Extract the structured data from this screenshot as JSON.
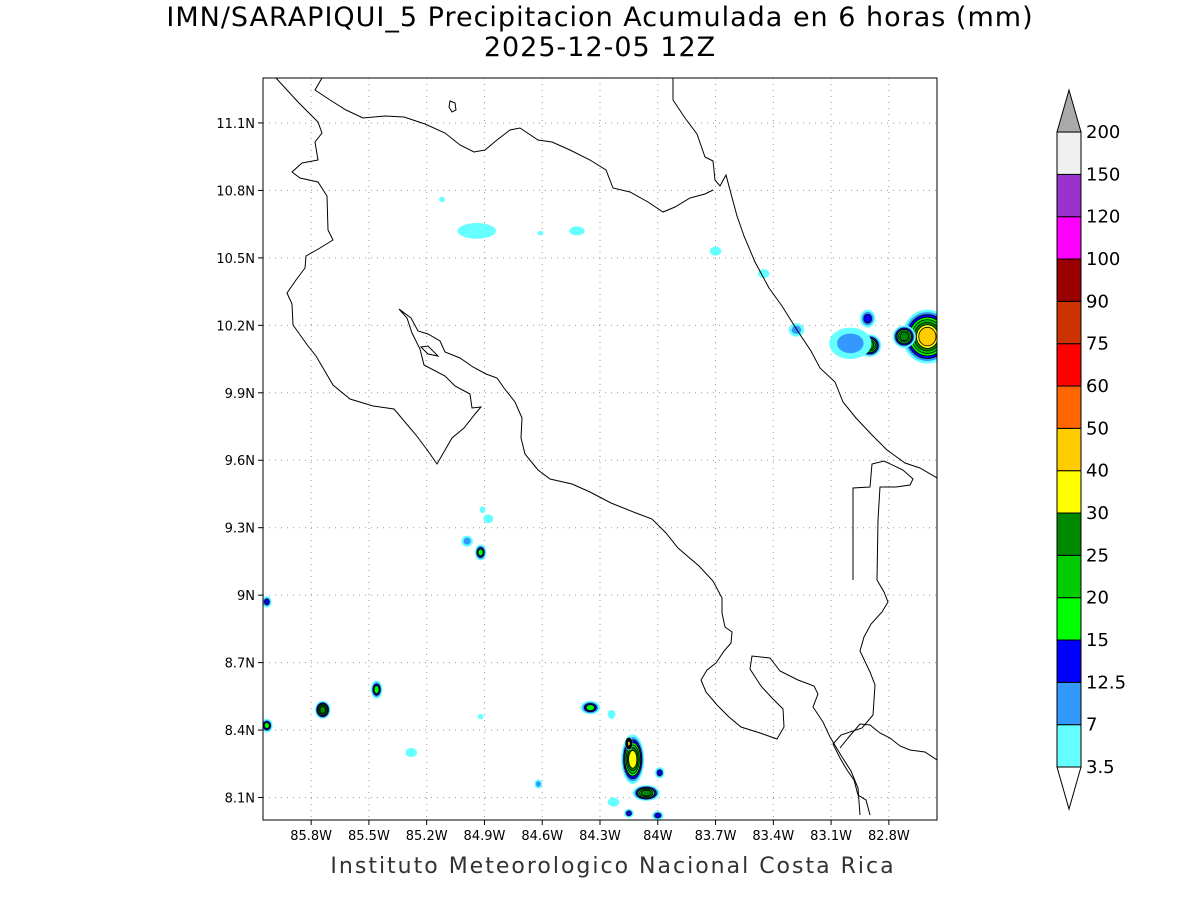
{
  "title": {
    "line1": "IMN/SARAPIQUI_5 Precipitacion Acumulada en 6 horas (mm)",
    "line2": "2025-12-05 12Z"
  },
  "footer": "Instituto Meteorologico Nacional Costa Rica",
  "map": {
    "lon_range": [
      -86.05,
      -82.55
    ],
    "lat_range": [
      8.0,
      11.3
    ],
    "lon_ticks": [
      {
        "value": -85.8,
        "label": "85.8W"
      },
      {
        "value": -85.5,
        "label": "85.5W"
      },
      {
        "value": -85.2,
        "label": "85.2W"
      },
      {
        "value": -84.9,
        "label": "84.9W"
      },
      {
        "value": -84.6,
        "label": "84.6W"
      },
      {
        "value": -84.3,
        "label": "84.3W"
      },
      {
        "value": -84.0,
        "label": "84W"
      },
      {
        "value": -83.7,
        "label": "83.7W"
      },
      {
        "value": -83.4,
        "label": "83.4W"
      },
      {
        "value": -83.1,
        "label": "83.1W"
      },
      {
        "value": -82.8,
        "label": "82.8W"
      }
    ],
    "lat_ticks": [
      {
        "value": 11.1,
        "label": "11.1N"
      },
      {
        "value": 10.8,
        "label": "10.8N"
      },
      {
        "value": 10.5,
        "label": "10.5N"
      },
      {
        "value": 10.2,
        "label": "10.2N"
      },
      {
        "value": 9.9,
        "label": "9.9N"
      },
      {
        "value": 9.6,
        "label": "9.6N"
      },
      {
        "value": 9.3,
        "label": "9.3N"
      },
      {
        "value": 9.0,
        "label": "9N"
      },
      {
        "value": 8.7,
        "label": "8.7N"
      },
      {
        "value": 8.4,
        "label": "8.4N"
      },
      {
        "value": 8.1,
        "label": "8.1N"
      }
    ],
    "grid": true,
    "coastline_color": "#000000",
    "precip_cells": [
      {
        "lon": -82.6,
        "lat": 10.15,
        "rx": 0.13,
        "ry": 0.12,
        "level": 40
      },
      {
        "lon": -82.72,
        "lat": 10.15,
        "rx": 0.06,
        "ry": 0.05,
        "level": 25
      },
      {
        "lon": -82.9,
        "lat": 10.11,
        "rx": 0.06,
        "ry": 0.05,
        "level": 25
      },
      {
        "lon": -82.91,
        "lat": 10.23,
        "rx": 0.04,
        "ry": 0.04,
        "level": 12.5
      },
      {
        "lon": -83.0,
        "lat": 10.12,
        "rx": 0.11,
        "ry": 0.07,
        "level": 7
      },
      {
        "lon": -83.28,
        "lat": 10.18,
        "rx": 0.04,
        "ry": 0.03,
        "level": 7
      },
      {
        "lon": -83.45,
        "lat": 10.43,
        "rx": 0.03,
        "ry": 0.02,
        "level": 3.5
      },
      {
        "lon": -83.7,
        "lat": 10.53,
        "rx": 0.03,
        "ry": 0.02,
        "level": 3.5
      },
      {
        "lon": -84.94,
        "lat": 10.62,
        "rx": 0.1,
        "ry": 0.035,
        "level": 3.5
      },
      {
        "lon": -84.42,
        "lat": 10.62,
        "rx": 0.04,
        "ry": 0.02,
        "level": 3.5
      },
      {
        "lon": -84.61,
        "lat": 10.61,
        "rx": 0.015,
        "ry": 0.01,
        "level": 3.5
      },
      {
        "lon": -85.12,
        "lat": 10.76,
        "rx": 0.015,
        "ry": 0.012,
        "level": 3.5
      },
      {
        "lon": -84.92,
        "lat": 9.19,
        "rx": 0.03,
        "ry": 0.035,
        "level": 15
      },
      {
        "lon": -84.99,
        "lat": 9.24,
        "rx": 0.03,
        "ry": 0.025,
        "level": 7
      },
      {
        "lon": -84.88,
        "lat": 9.34,
        "rx": 0.025,
        "ry": 0.02,
        "level": 3.5
      },
      {
        "lon": -84.91,
        "lat": 9.38,
        "rx": 0.015,
        "ry": 0.015,
        "level": 3.5
      },
      {
        "lon": -86.03,
        "lat": 8.97,
        "rx": 0.025,
        "ry": 0.025,
        "level": 12.5
      },
      {
        "lon": -85.74,
        "lat": 8.49,
        "rx": 0.04,
        "ry": 0.04,
        "level": 25
      },
      {
        "lon": -85.46,
        "lat": 8.58,
        "rx": 0.03,
        "ry": 0.04,
        "level": 15
      },
      {
        "lon": -86.03,
        "lat": 8.42,
        "rx": 0.03,
        "ry": 0.03,
        "level": 15
      },
      {
        "lon": -85.28,
        "lat": 8.3,
        "rx": 0.03,
        "ry": 0.02,
        "level": 3.5
      },
      {
        "lon": -84.92,
        "lat": 8.46,
        "rx": 0.015,
        "ry": 0.012,
        "level": 3.5
      },
      {
        "lon": -84.62,
        "lat": 8.16,
        "rx": 0.02,
        "ry": 0.02,
        "level": 7
      },
      {
        "lon": -84.35,
        "lat": 8.5,
        "rx": 0.05,
        "ry": 0.03,
        "level": 15
      },
      {
        "lon": -84.24,
        "lat": 8.47,
        "rx": 0.02,
        "ry": 0.02,
        "level": 3.5
      },
      {
        "lon": -84.13,
        "lat": 8.27,
        "rx": 0.06,
        "ry": 0.11,
        "level": 30
      },
      {
        "lon": -84.15,
        "lat": 8.34,
        "rx": 0.02,
        "ry": 0.03,
        "level": 40
      },
      {
        "lon": -84.06,
        "lat": 8.12,
        "rx": 0.07,
        "ry": 0.035,
        "level": 25
      },
      {
        "lon": -83.99,
        "lat": 8.21,
        "rx": 0.025,
        "ry": 0.025,
        "level": 12.5
      },
      {
        "lon": -84.15,
        "lat": 8.03,
        "rx": 0.025,
        "ry": 0.02,
        "level": 12.5
      },
      {
        "lon": -84.0,
        "lat": 8.02,
        "rx": 0.03,
        "ry": 0.02,
        "level": 12.5
      },
      {
        "lon": -84.23,
        "lat": 8.08,
        "rx": 0.03,
        "ry": 0.02,
        "level": 3.5
      }
    ]
  },
  "colorbar": {
    "bins": [
      {
        "color": "#66ffff",
        "label": "3.5"
      },
      {
        "color": "#3399ff",
        "label": "7"
      },
      {
        "color": "#0000ff",
        "label": "12.5"
      },
      {
        "color": "#00ff00",
        "label": "15"
      },
      {
        "color": "#00cc00",
        "label": "20"
      },
      {
        "color": "#008800",
        "label": "25"
      },
      {
        "color": "#ffff00",
        "label": "30"
      },
      {
        "color": "#ffcc00",
        "label": "40"
      },
      {
        "color": "#ff6600",
        "label": "50"
      },
      {
        "color": "#ff0000",
        "label": "60"
      },
      {
        "color": "#cc3300",
        "label": "75"
      },
      {
        "color": "#990000",
        "label": "90"
      },
      {
        "color": "#ff00ff",
        "label": "100"
      },
      {
        "color": "#9933cc",
        "label": "120"
      },
      {
        "color": "#f0f0f0",
        "label": "150"
      }
    ],
    "top_label": "200",
    "over_color": "#aaaaaa",
    "under_color": "#ffffff"
  }
}
